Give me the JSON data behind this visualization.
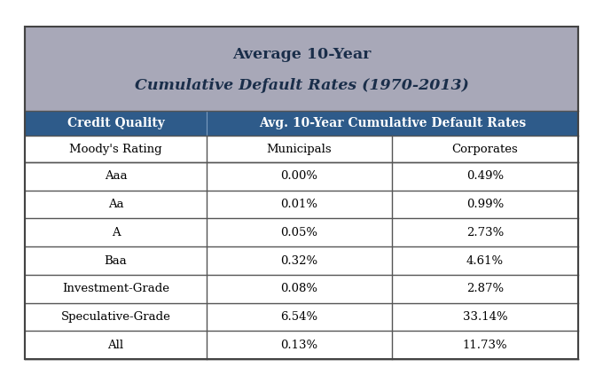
{
  "title_line1": "Average 10-Year",
  "title_line2": "Cumulative Default Rates (1970-2013)",
  "title_bg_color": "#A8A8B8",
  "header_bg_color": "#2E5B8A",
  "header_text_color": "#FFFFFF",
  "row_bg_color": "#FFFFFF",
  "border_color": "#555555",
  "outer_border_color": "#444444",
  "col1_header": "Credit Quality",
  "col2_header": "Avg. 10-Year Cumulative Default Rates",
  "subheader_col1": "Moody's Rating",
  "subheader_col2": "Municipals",
  "subheader_col3": "Corporates",
  "rows": [
    [
      "Aaa",
      "0.00%",
      "0.49%"
    ],
    [
      "Aa",
      "0.01%",
      "0.99%"
    ],
    [
      "A",
      "0.05%",
      "2.73%"
    ],
    [
      "Baa",
      "0.32%",
      "4.61%"
    ],
    [
      "Investment-Grade",
      "0.08%",
      "2.87%"
    ],
    [
      "Speculative-Grade",
      "6.54%",
      "33.14%"
    ],
    [
      "All",
      "0.13%",
      "11.73%"
    ]
  ],
  "title_color": "#1a2e4a",
  "fig_width": 6.8,
  "fig_height": 4.23,
  "dpi": 100,
  "title_fontsize": 12.5,
  "header_fontsize": 10,
  "data_fontsize": 9.5
}
